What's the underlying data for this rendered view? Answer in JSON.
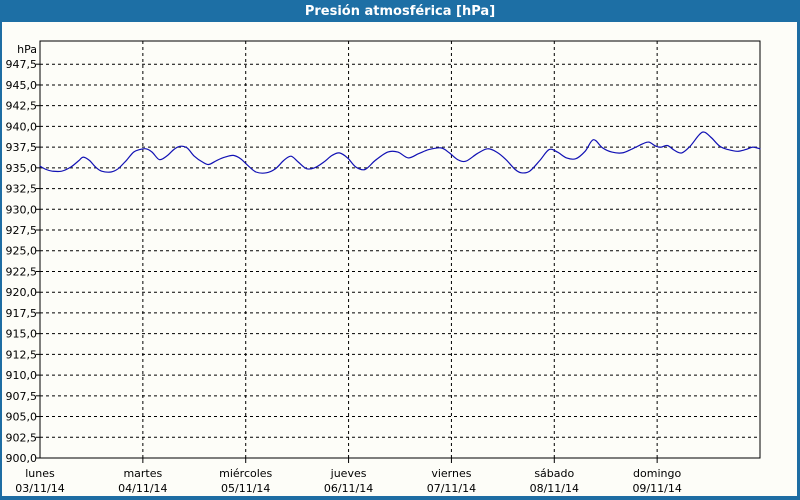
{
  "window": {
    "title": "Presión atmosférica [hPa]"
  },
  "colors": {
    "titlebar_bg": "#1d6fa5",
    "titlebar_text": "#ffffff",
    "frame": "#1e6da3",
    "content_bg": "#fdfdf8",
    "plot_border": "#000000",
    "grid": "#000000",
    "label_text": "#000000",
    "line": "#1111b4"
  },
  "chart_data": {
    "type": "line",
    "title": "Presión atmosférica [hPa]",
    "y_unit_label": "hPa",
    "ylabel": "",
    "xlabel": "",
    "ylim": [
      900.0,
      950.3
    ],
    "grid": "dashed horizontal every 2.5 hPa, dashed vertical at day boundaries",
    "legend_position": "none",
    "y_ticks": [
      {
        "value": 947.5,
        "label": "947,5"
      },
      {
        "value": 945.0,
        "label": "945,0"
      },
      {
        "value": 942.5,
        "label": "942,5"
      },
      {
        "value": 940.0,
        "label": "940,0"
      },
      {
        "value": 937.5,
        "label": "937,5"
      },
      {
        "value": 935.0,
        "label": "935,0"
      },
      {
        "value": 932.5,
        "label": "932,5"
      },
      {
        "value": 930.0,
        "label": "930,0"
      },
      {
        "value": 927.5,
        "label": "927,5"
      },
      {
        "value": 925.0,
        "label": "925,0"
      },
      {
        "value": 922.5,
        "label": "922,5"
      },
      {
        "value": 920.0,
        "label": "920,0"
      },
      {
        "value": 917.5,
        "label": "917,5"
      },
      {
        "value": 915.0,
        "label": "915,0"
      },
      {
        "value": 912.5,
        "label": "912,5"
      },
      {
        "value": 910.0,
        "label": "910,0"
      },
      {
        "value": 907.5,
        "label": "907,5"
      },
      {
        "value": 905.0,
        "label": "905,0"
      },
      {
        "value": 902.5,
        "label": "902,5"
      },
      {
        "value": 900.0,
        "label": "900,0"
      }
    ],
    "days": [
      {
        "name": "lunes",
        "date": "03/11/14"
      },
      {
        "name": "martes",
        "date": "04/11/14"
      },
      {
        "name": "miércoles",
        "date": "05/11/14"
      },
      {
        "name": "jueves",
        "date": "06/11/14"
      },
      {
        "name": "viernes",
        "date": "07/11/14"
      },
      {
        "name": "sábado",
        "date": "08/11/14"
      },
      {
        "name": "domingo",
        "date": "09/11/14"
      }
    ],
    "series": [
      {
        "name": "Presión atmosférica",
        "unit": "hPa",
        "x_unit": "days from 03/11/14 00:00",
        "points": [
          [
            0.0,
            935.2
          ],
          [
            0.06,
            934.8
          ],
          [
            0.12,
            934.6
          ],
          [
            0.21,
            934.6
          ],
          [
            0.3,
            935.1
          ],
          [
            0.38,
            935.9
          ],
          [
            0.42,
            936.3
          ],
          [
            0.48,
            935.9
          ],
          [
            0.54,
            935.1
          ],
          [
            0.6,
            934.6
          ],
          [
            0.69,
            934.5
          ],
          [
            0.76,
            934.9
          ],
          [
            0.84,
            935.9
          ],
          [
            0.91,
            936.9
          ],
          [
            0.97,
            937.2
          ],
          [
            1.03,
            937.3
          ],
          [
            1.09,
            936.9
          ],
          [
            1.16,
            936.0
          ],
          [
            1.23,
            936.4
          ],
          [
            1.3,
            937.2
          ],
          [
            1.36,
            937.6
          ],
          [
            1.43,
            937.4
          ],
          [
            1.5,
            936.4
          ],
          [
            1.58,
            935.7
          ],
          [
            1.64,
            935.4
          ],
          [
            1.72,
            935.9
          ],
          [
            1.8,
            936.3
          ],
          [
            1.88,
            936.5
          ],
          [
            1.95,
            936.1
          ],
          [
            2.02,
            935.3
          ],
          [
            2.1,
            934.5
          ],
          [
            2.2,
            934.4
          ],
          [
            2.29,
            934.9
          ],
          [
            2.37,
            935.9
          ],
          [
            2.44,
            936.4
          ],
          [
            2.51,
            935.7
          ],
          [
            2.59,
            934.9
          ],
          [
            2.67,
            935.0
          ],
          [
            2.76,
            935.7
          ],
          [
            2.84,
            936.5
          ],
          [
            2.91,
            936.8
          ],
          [
            2.99,
            936.2
          ],
          [
            3.07,
            935.1
          ],
          [
            3.16,
            934.8
          ],
          [
            3.26,
            935.9
          ],
          [
            3.38,
            936.9
          ],
          [
            3.48,
            936.9
          ],
          [
            3.58,
            936.2
          ],
          [
            3.68,
            936.7
          ],
          [
            3.78,
            937.2
          ],
          [
            3.9,
            937.4
          ],
          [
            3.98,
            936.8
          ],
          [
            4.06,
            936.0
          ],
          [
            4.14,
            935.8
          ],
          [
            4.25,
            936.7
          ],
          [
            4.35,
            937.3
          ],
          [
            4.44,
            936.9
          ],
          [
            4.53,
            936.0
          ],
          [
            4.62,
            934.8
          ],
          [
            4.68,
            934.4
          ],
          [
            4.76,
            934.6
          ],
          [
            4.86,
            935.9
          ],
          [
            4.95,
            937.2
          ],
          [
            5.03,
            936.9
          ],
          [
            5.12,
            936.2
          ],
          [
            5.21,
            936.1
          ],
          [
            5.3,
            937.0
          ],
          [
            5.38,
            938.4
          ],
          [
            5.47,
            937.4
          ],
          [
            5.56,
            936.9
          ],
          [
            5.66,
            936.8
          ],
          [
            5.76,
            937.3
          ],
          [
            5.86,
            937.9
          ],
          [
            5.92,
            938.1
          ],
          [
            5.99,
            937.6
          ],
          [
            6.04,
            937.5
          ],
          [
            6.1,
            937.7
          ],
          [
            6.17,
            937.1
          ],
          [
            6.24,
            936.8
          ],
          [
            6.32,
            937.6
          ],
          [
            6.41,
            939.0
          ],
          [
            6.46,
            939.3
          ],
          [
            6.53,
            938.6
          ],
          [
            6.61,
            937.6
          ],
          [
            6.69,
            937.2
          ],
          [
            6.78,
            937.0
          ],
          [
            6.86,
            937.2
          ],
          [
            6.93,
            937.5
          ],
          [
            7.0,
            937.3
          ]
        ]
      }
    ]
  }
}
